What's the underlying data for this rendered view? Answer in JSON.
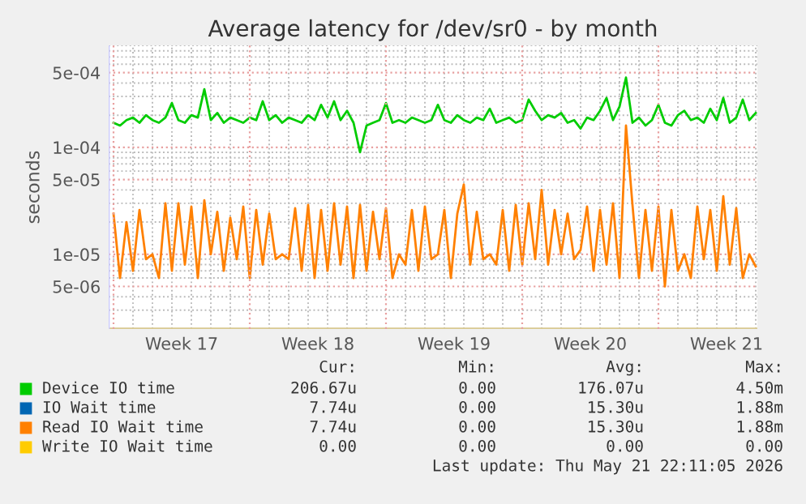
{
  "chart_data": {
    "type": "line",
    "title": "Average latency for /dev/sr0 - by month",
    "ylabel": "seconds",
    "log": "y",
    "grid": true,
    "legend": "bottom",
    "marker": "none",
    "line_style": "solid",
    "xlim": [
      "2026-04-19T18:00",
      "2026-05-23T02:00"
    ],
    "xticks": [
      {
        "value": "2026-04-20T00:00",
        "label": null
      },
      {
        "value": "2026-04-23T12:00",
        "label": "Week 17"
      },
      {
        "value": "2026-04-27T00:00",
        "label": null
      },
      {
        "value": "2026-04-30T12:00",
        "label": "Week 18"
      },
      {
        "value": "2026-05-04T00:00",
        "label": null
      },
      {
        "value": "2026-05-07T12:00",
        "label": "Week 19"
      },
      {
        "value": "2026-05-11T00:00",
        "label": null
      },
      {
        "value": "2026-05-14T12:00",
        "label": "Week 20"
      },
      {
        "value": "2026-05-18T00:00",
        "label": null
      },
      {
        "value": "2026-05-21T12:00",
        "label": "Week 21"
      }
    ],
    "ylim": [
      2e-06,
      0.0009
    ],
    "yticks": [
      {
        "value": 5e-06,
        "label": "5e-06"
      },
      {
        "value": 1e-05,
        "label": "1e-05"
      },
      {
        "value": 5e-05,
        "label": "5e-05"
      },
      {
        "value": 0.0001,
        "label": "1e-04"
      },
      {
        "value": 0.0005,
        "label": "5e-04"
      }
    ],
    "x": [
      "2026-04-20T00:00",
      "2026-04-20T08:00",
      "2026-04-20T16:00",
      "2026-04-21T00:00",
      "2026-04-21T08:00",
      "2026-04-21T16:00",
      "2026-04-22T00:00",
      "2026-04-22T08:00",
      "2026-04-22T16:00",
      "2026-04-23T00:00",
      "2026-04-23T08:00",
      "2026-04-23T16:00",
      "2026-04-24T00:00",
      "2026-04-24T08:00",
      "2026-04-24T16:00",
      "2026-04-25T00:00",
      "2026-04-25T08:00",
      "2026-04-25T16:00",
      "2026-04-26T00:00",
      "2026-04-26T08:00",
      "2026-04-26T16:00",
      "2026-04-27T00:00",
      "2026-04-27T08:00",
      "2026-04-27T16:00",
      "2026-04-28T00:00",
      "2026-04-28T08:00",
      "2026-04-28T16:00",
      "2026-04-29T00:00",
      "2026-04-29T08:00",
      "2026-04-29T16:00",
      "2026-04-30T00:00",
      "2026-04-30T08:00",
      "2026-04-30T16:00",
      "2026-05-01T00:00",
      "2026-05-01T08:00",
      "2026-05-01T16:00",
      "2026-05-02T00:00",
      "2026-05-02T08:00",
      "2026-05-02T16:00",
      "2026-05-03T00:00",
      "2026-05-03T08:00",
      "2026-05-03T16:00",
      "2026-05-04T00:00",
      "2026-05-04T08:00",
      "2026-05-04T16:00",
      "2026-05-05T00:00",
      "2026-05-05T08:00",
      "2026-05-05T16:00",
      "2026-05-06T00:00",
      "2026-05-06T08:00",
      "2026-05-06T16:00",
      "2026-05-07T00:00",
      "2026-05-07T08:00",
      "2026-05-07T16:00",
      "2026-05-08T00:00",
      "2026-05-08T08:00",
      "2026-05-08T16:00",
      "2026-05-09T00:00",
      "2026-05-09T08:00",
      "2026-05-09T16:00",
      "2026-05-10T00:00",
      "2026-05-10T08:00",
      "2026-05-10T16:00",
      "2026-05-11T00:00",
      "2026-05-11T08:00",
      "2026-05-11T16:00",
      "2026-05-12T00:00",
      "2026-05-12T08:00",
      "2026-05-12T16:00",
      "2026-05-13T00:00",
      "2026-05-13T08:00",
      "2026-05-13T16:00",
      "2026-05-14T00:00",
      "2026-05-14T08:00",
      "2026-05-14T16:00",
      "2026-05-15T00:00",
      "2026-05-15T08:00",
      "2026-05-15T16:00",
      "2026-05-16T00:00",
      "2026-05-16T08:00",
      "2026-05-16T16:00",
      "2026-05-17T00:00",
      "2026-05-17T08:00",
      "2026-05-17T16:00",
      "2026-05-18T00:00",
      "2026-05-18T08:00",
      "2026-05-18T16:00",
      "2026-05-19T00:00",
      "2026-05-19T08:00",
      "2026-05-19T16:00",
      "2026-05-20T00:00",
      "2026-05-20T08:00",
      "2026-05-20T16:00",
      "2026-05-21T00:00",
      "2026-05-21T08:00",
      "2026-05-21T16:00",
      "2026-05-22T00:00",
      "2026-05-22T08:00",
      "2026-05-22T16:00",
      "2026-05-23T00:00"
    ],
    "series": [
      {
        "name": "Device IO time",
        "color": "#00cc00",
        "values": [
          0.00017,
          0.00016,
          0.00018,
          0.00019,
          0.00017,
          0.0002,
          0.00018,
          0.00017,
          0.00019,
          0.00026,
          0.00018,
          0.00017,
          0.0002,
          0.00019,
          0.00035,
          0.00018,
          0.00021,
          0.00017,
          0.00019,
          0.00018,
          0.00017,
          0.00019,
          0.00018,
          0.00027,
          0.00018,
          0.0002,
          0.00017,
          0.00019,
          0.00018,
          0.00017,
          0.0002,
          0.00018,
          0.00025,
          0.00019,
          0.00027,
          0.00018,
          0.00022,
          0.00017,
          9e-05,
          0.00016,
          0.00017,
          0.00018,
          0.00026,
          0.00017,
          0.00018,
          0.00017,
          0.00019,
          0.00018,
          0.00017,
          0.00018,
          0.00025,
          0.00018,
          0.00017,
          0.0002,
          0.00018,
          0.00017,
          0.00019,
          0.00018,
          0.00023,
          0.00017,
          0.00018,
          0.00019,
          0.00017,
          0.00018,
          0.00028,
          0.00022,
          0.00018,
          0.0002,
          0.00019,
          0.00021,
          0.00017,
          0.00018,
          0.00015,
          0.00019,
          0.00018,
          0.00022,
          0.00029,
          0.00018,
          0.00024,
          0.00045,
          0.00017,
          0.00019,
          0.00016,
          0.00018,
          0.00025,
          0.00017,
          0.00016,
          0.0002,
          0.00022,
          0.00018,
          0.00019,
          0.00017,
          0.00023,
          0.00018,
          0.00029,
          0.00017,
          0.00019,
          0.00028,
          0.00018,
          0.00021
        ]
      },
      {
        "name": "IO Wait time",
        "color": "#0066b3",
        "values": [
          null,
          null,
          null,
          null,
          null,
          null,
          null,
          null,
          null,
          null,
          null,
          null,
          null,
          null,
          null,
          null,
          null,
          null,
          null,
          null,
          null,
          null,
          null,
          null,
          null,
          null,
          null,
          null,
          null,
          null,
          null,
          null,
          null,
          null,
          null,
          null,
          null,
          null,
          null,
          null,
          null,
          null,
          null,
          null,
          null,
          null,
          null,
          null,
          null,
          null,
          null,
          null,
          null,
          null,
          null,
          null,
          null,
          null,
          null,
          null,
          null,
          null,
          null,
          null,
          null,
          null,
          null,
          null,
          null,
          null,
          null,
          null,
          null,
          null,
          null,
          null,
          null,
          null,
          null,
          null,
          null,
          null,
          null,
          null,
          null,
          null,
          null,
          null,
          null,
          null,
          null,
          null,
          null,
          null,
          null,
          null,
          null,
          null,
          null,
          null
        ]
      },
      {
        "name": "Read IO Wait time",
        "color": "#ff8000",
        "values": [
          2.4e-05,
          6e-06,
          2e-05,
          7e-06,
          2.6e-05,
          9e-06,
          1e-05,
          6e-06,
          3e-05,
          7e-06,
          3e-05,
          8e-06,
          2.8e-05,
          6e-06,
          3.2e-05,
          1e-05,
          2.5e-05,
          7e-06,
          2.2e-05,
          9e-06,
          2.8e-05,
          6e-06,
          2.6e-05,
          8e-06,
          2.4e-05,
          9e-06,
          1e-05,
          9e-06,
          2.7e-05,
          7e-06,
          2.9e-05,
          6e-06,
          2.6e-05,
          7e-06,
          3e-05,
          8e-06,
          2.8e-05,
          6e-06,
          2.9e-05,
          7e-06,
          2.5e-05,
          9e-06,
          2.7e-05,
          6e-06,
          1e-05,
          8e-06,
          2.6e-05,
          7e-06,
          2.8e-05,
          9e-06,
          1e-05,
          2.6e-05,
          6e-06,
          2.4e-05,
          4.5e-05,
          8e-06,
          2.5e-05,
          9e-06,
          1e-05,
          8e-06,
          2.6e-05,
          7e-06,
          2.9e-05,
          8e-06,
          3e-05,
          9e-06,
          4e-05,
          8e-06,
          2.6e-05,
          1e-05,
          2.4e-05,
          9e-06,
          1.1e-05,
          2.8e-05,
          7e-06,
          2.6e-05,
          8e-06,
          3e-05,
          6e-06,
          0.00016,
          2.9e-05,
          6e-06,
          2.6e-05,
          7e-06,
          2.8e-05,
          5e-06,
          2.6e-05,
          7e-06,
          1e-05,
          6e-06,
          2.8e-05,
          9e-06,
          2.6e-05,
          7e-06,
          3.5e-05,
          8e-06,
          2.7e-05,
          6e-06,
          1e-05,
          7.7e-06
        ]
      },
      {
        "name": "Write IO Wait time",
        "color": "#ffcc00",
        "values": [
          null,
          null,
          null,
          null,
          null,
          null,
          null,
          null,
          null,
          null,
          null,
          null,
          null,
          null,
          null,
          null,
          null,
          null,
          null,
          null,
          null,
          null,
          null,
          null,
          null,
          null,
          null,
          null,
          null,
          null,
          null,
          null,
          null,
          null,
          null,
          null,
          null,
          null,
          null,
          null,
          null,
          null,
          null,
          null,
          null,
          null,
          null,
          null,
          null,
          null,
          null,
          null,
          null,
          null,
          null,
          null,
          null,
          null,
          null,
          null,
          null,
          null,
          null,
          null,
          null,
          null,
          null,
          null,
          null,
          null,
          null,
          null,
          null,
          null,
          null,
          null,
          null,
          null,
          null,
          null,
          null,
          null,
          null,
          null,
          null,
          null,
          null,
          null,
          null,
          null,
          null,
          null,
          null,
          null,
          null,
          null,
          null,
          null,
          null,
          null
        ]
      }
    ],
    "annotations": [
      "Cur:",
      "Min:",
      "Avg:",
      "Max:",
      "206.67u",
      "0.00",
      "176.07u",
      "4.50m",
      "7.74u",
      "0.00",
      "15.30u",
      "1.88m",
      "7.74u",
      "0.00",
      "15.30u",
      "1.88m",
      "0.00",
      "0.00",
      "0.00",
      "0.00",
      "Last update: Thu May 21 22:11:05 2026"
    ]
  }
}
